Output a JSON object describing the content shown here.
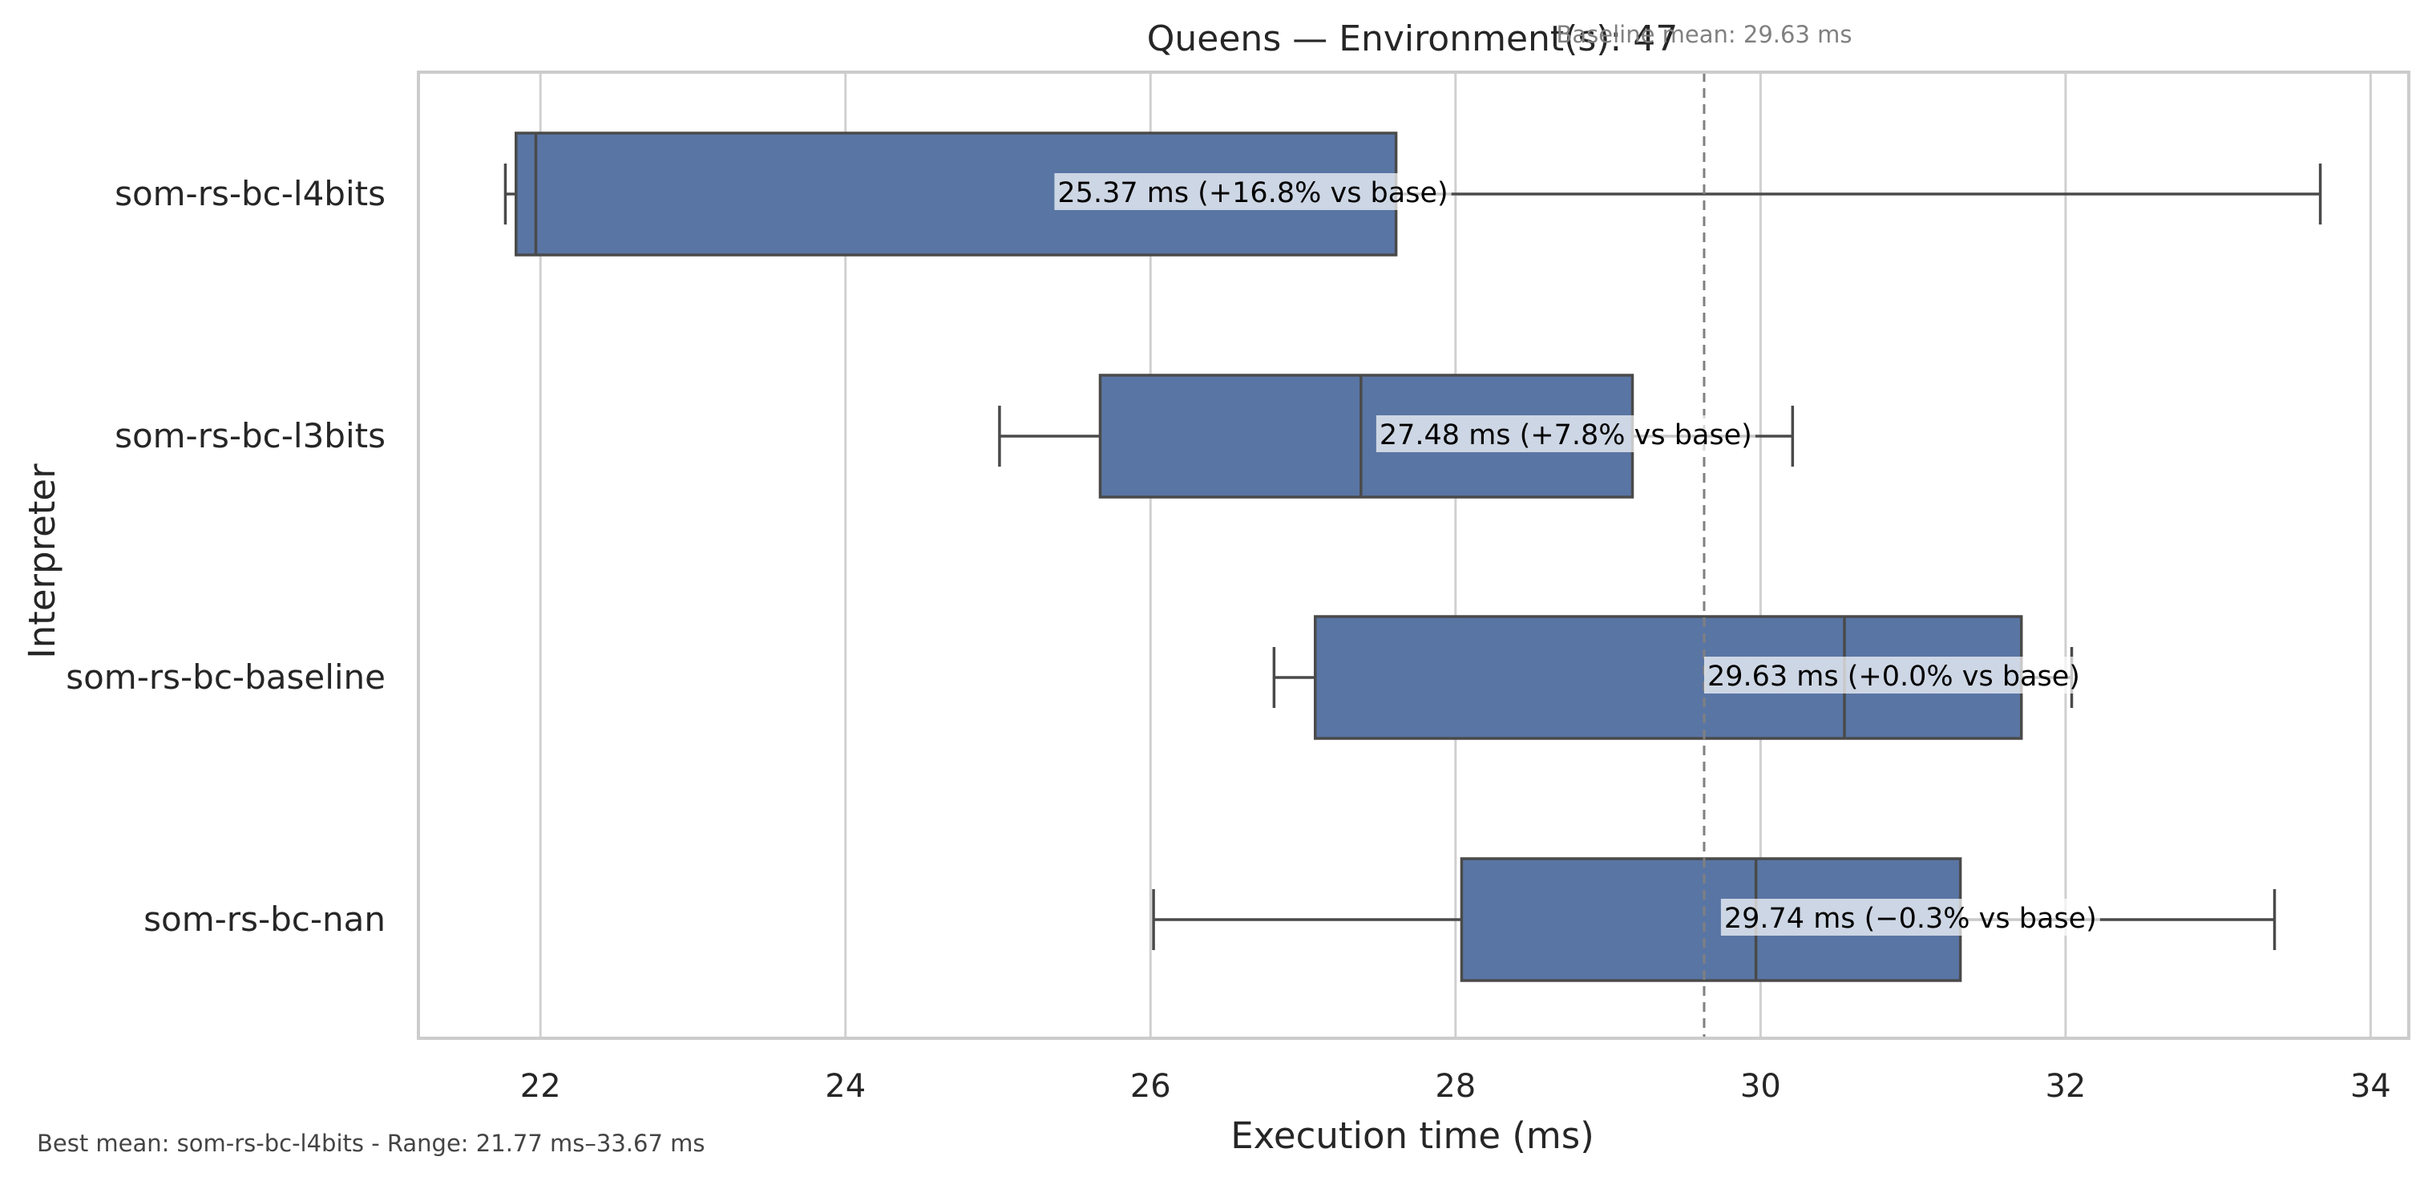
{
  "chart_data": {
    "type": "box",
    "orientation": "horizontal",
    "title": "Queens — Environment(s): 47",
    "xlabel": "Execution time (ms)",
    "ylabel": "Interpreter",
    "xlim": [
      21.2,
      34.25
    ],
    "xticks": [
      22,
      24,
      26,
      28,
      30,
      32,
      34
    ],
    "grid": "vertical",
    "box_color": "#5975a4",
    "line_color": "#4a4a4a",
    "baseline": {
      "value": 29.63,
      "label": "Baseline mean: 29.63 ms",
      "style": "dashed"
    },
    "categories": [
      "som-rs-bc-l4bits",
      "som-rs-bc-l3bits",
      "som-rs-bc-baseline",
      "som-rs-bc-nan"
    ],
    "boxes": [
      {
        "name": "som-rs-bc-l4bits",
        "whisker_low": 21.77,
        "q1": 21.84,
        "median": 21.97,
        "q3": 27.61,
        "whisker_high": 33.67,
        "mean": 25.37,
        "annotation": "25.37 ms  (+16.8% vs base)"
      },
      {
        "name": "som-rs-bc-l3bits",
        "whisker_low": 25.01,
        "q1": 25.67,
        "median": 27.38,
        "q3": 29.16,
        "whisker_high": 30.21,
        "mean": 27.48,
        "annotation": "27.48 ms  (+7.8% vs base)"
      },
      {
        "name": "som-rs-bc-baseline",
        "whisker_low": 26.81,
        "q1": 27.08,
        "median": 30.55,
        "q3": 31.71,
        "whisker_high": 32.04,
        "mean": 29.63,
        "annotation": "29.63 ms  (+0.0% vs base)"
      },
      {
        "name": "som-rs-bc-nan",
        "whisker_low": 26.02,
        "q1": 28.04,
        "median": 29.97,
        "q3": 31.31,
        "whisker_high": 33.37,
        "mean": 29.74,
        "annotation": "29.74 ms  (−0.3% vs base)"
      }
    ],
    "footnote": "Best mean: som-rs-bc-l4bits - Range: 21.77 ms–33.67 ms"
  }
}
